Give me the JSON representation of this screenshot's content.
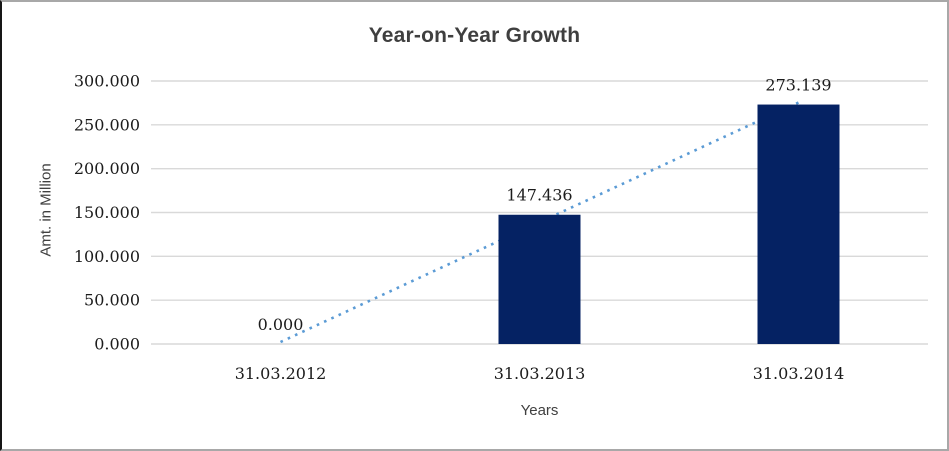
{
  "chart_data": {
    "type": "bar",
    "title": "Year-on-Year Growth",
    "xlabel": "Years",
    "ylabel": "Amt. in Million",
    "categories": [
      "31.03.2012",
      "31.03.2013",
      "31.03.2014"
    ],
    "values": [
      0.0,
      147.436,
      273.139
    ],
    "data_labels": [
      "0.000",
      "147.436",
      "273.139"
    ],
    "ylim": [
      0,
      300
    ],
    "ytick_step": 50,
    "ytick_labels": [
      "0.000",
      "50.000",
      "100.000",
      "150.000",
      "200.000",
      "250.000",
      "300.000"
    ],
    "grid": true,
    "legend": "none",
    "colors": {
      "bar": "#052263",
      "trendline": "#5b9bd5",
      "gridline": "#d9d9d9",
      "title_text": "#3f3f3f",
      "label_text": "#1c1c1c"
    },
    "trendline": {
      "type": "linear",
      "style": "dotted"
    }
  }
}
